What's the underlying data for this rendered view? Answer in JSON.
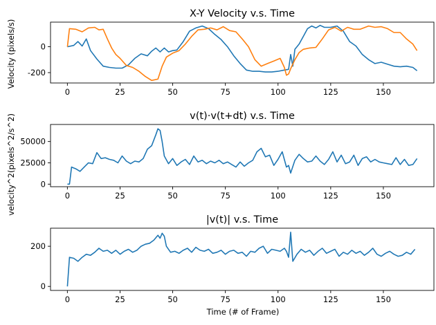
{
  "figure": {
    "xlabel": "Time (# of Frame)"
  },
  "chart_data": [
    {
      "type": "line",
      "title": "X-Y Velocity v.s. Time",
      "ylabel": "Velocity (pixels/s)",
      "xlim": [
        -8,
        174
      ],
      "ylim": [
        -280,
        190
      ],
      "xticks": [
        0,
        25,
        50,
        75,
        100,
        125,
        150
      ],
      "yticks": [
        -200,
        0
      ],
      "colors": [
        "#1f77b4",
        "#ff7f0e"
      ],
      "series": [
        {
          "x": [
            0,
            3,
            5,
            7,
            9,
            11,
            14,
            17,
            20,
            23,
            26,
            29,
            32,
            35,
            38,
            40,
            42,
            44,
            46,
            48,
            50,
            52,
            55,
            58,
            61,
            64,
            67,
            70,
            73,
            76,
            79,
            82,
            85,
            88,
            91,
            94,
            97,
            100,
            103,
            105,
            106,
            107,
            108,
            110,
            112,
            114,
            116,
            118,
            120,
            122,
            125,
            128,
            131,
            134,
            137,
            140,
            143,
            146,
            149,
            152,
            155,
            158,
            161,
            164,
            166
          ],
          "y": [
            0,
            10,
            40,
            5,
            60,
            -30,
            -95,
            -150,
            -160,
            -165,
            -165,
            -140,
            -90,
            -55,
            -70,
            -35,
            -10,
            -40,
            -10,
            -40,
            -30,
            -25,
            40,
            120,
            145,
            160,
            140,
            95,
            55,
            0,
            -70,
            -130,
            -180,
            -190,
            -190,
            -195,
            -195,
            -190,
            -180,
            -175,
            -60,
            -150,
            -20,
            20,
            80,
            140,
            160,
            145,
            165,
            150,
            150,
            160,
            120,
            40,
            5,
            -60,
            -100,
            -130,
            -120,
            -135,
            -150,
            -155,
            -150,
            -160,
            -185
          ]
        },
        {
          "x": [
            0,
            1,
            4,
            7,
            10,
            13,
            15,
            17,
            19,
            21,
            23,
            25,
            28,
            31,
            34,
            37,
            40,
            43,
            45,
            47,
            50,
            53,
            56,
            59,
            62,
            65,
            68,
            71,
            74,
            77,
            80,
            83,
            86,
            89,
            92,
            95,
            98,
            101,
            103,
            104,
            105,
            106,
            108,
            110,
            112,
            115,
            118,
            121,
            124,
            127,
            130,
            133,
            136,
            139,
            143,
            146,
            149,
            152,
            155,
            158,
            161,
            164,
            166
          ],
          "y": [
            0,
            140,
            135,
            115,
            145,
            150,
            130,
            135,
            60,
            -10,
            -60,
            -90,
            -145,
            -160,
            -190,
            -230,
            -260,
            -250,
            -150,
            -80,
            -50,
            -30,
            20,
            80,
            130,
            135,
            145,
            130,
            155,
            125,
            115,
            60,
            0,
            -100,
            -150,
            -130,
            -110,
            -90,
            -160,
            -220,
            -210,
            -170,
            -100,
            -45,
            -20,
            -10,
            -5,
            60,
            130,
            150,
            120,
            150,
            135,
            135,
            160,
            150,
            155,
            140,
            110,
            110,
            60,
            20,
            -30
          ]
        }
      ]
    },
    {
      "type": "line",
      "title": "v(t)·v(t+dt) v.s. Time",
      "ylabel": "velocity^2(pixels^2/s^2)",
      "xlim": [
        -8,
        174
      ],
      "ylim": [
        -3000,
        70000
      ],
      "xticks": [
        0,
        25,
        50,
        75,
        100,
        125,
        150
      ],
      "yticks": [
        0,
        25000,
        50000
      ],
      "colors": [
        "#1f77b4"
      ],
      "series": [
        {
          "x": [
            0,
            1,
            2,
            4,
            6,
            8,
            10,
            12,
            14,
            16,
            18,
            20,
            22,
            24,
            26,
            28,
            30,
            32,
            34,
            36,
            38,
            40,
            42,
            43,
            44,
            45,
            46,
            48,
            50,
            52,
            54,
            56,
            58,
            60,
            62,
            64,
            66,
            68,
            70,
            72,
            74,
            76,
            78,
            80,
            82,
            84,
            86,
            88,
            90,
            92,
            94,
            96,
            98,
            100,
            102,
            104,
            105,
            106,
            108,
            110,
            112,
            114,
            116,
            118,
            120,
            122,
            124,
            126,
            128,
            130,
            132,
            134,
            136,
            138,
            140,
            142,
            144,
            146,
            148,
            150,
            152,
            154,
            156,
            158,
            160,
            162,
            164,
            166
          ],
          "y": [
            0,
            0,
            20000,
            18000,
            15000,
            20000,
            25000,
            24000,
            37000,
            30000,
            31000,
            29000,
            28000,
            25000,
            33000,
            27000,
            24000,
            27000,
            26000,
            30000,
            41000,
            45000,
            58000,
            65000,
            63000,
            50000,
            33000,
            24000,
            30000,
            22000,
            26000,
            29000,
            23000,
            33000,
            26000,
            28000,
            24000,
            27000,
            25000,
            28000,
            24000,
            26000,
            23000,
            20000,
            26000,
            21000,
            25000,
            28000,
            38000,
            42000,
            32000,
            34000,
            22000,
            29000,
            38000,
            20000,
            22000,
            13000,
            28000,
            35000,
            30000,
            26000,
            27000,
            33000,
            27000,
            23000,
            29000,
            38000,
            26000,
            34000,
            24000,
            26000,
            34000,
            22000,
            30000,
            32000,
            26000,
            29000,
            26000,
            25000,
            24000,
            23000,
            31000,
            23000,
            29000,
            22000,
            23000,
            30000
          ]
        }
      ]
    },
    {
      "type": "line",
      "title": "|v(t)| v.s. Time",
      "ylabel": "",
      "xlim": [
        -8,
        174
      ],
      "ylim": [
        -20,
        290
      ],
      "xticks": [
        0,
        25,
        50,
        75,
        100,
        125,
        150
      ],
      "yticks": [
        0,
        200
      ],
      "colors": [
        "#1f77b4"
      ],
      "series": [
        {
          "x": [
            0,
            1,
            3,
            5,
            7,
            9,
            11,
            13,
            15,
            17,
            19,
            21,
            23,
            25,
            27,
            29,
            31,
            33,
            35,
            37,
            39,
            41,
            43,
            44,
            45,
            46,
            47,
            49,
            51,
            53,
            55,
            57,
            59,
            61,
            63,
            65,
            67,
            69,
            71,
            73,
            75,
            77,
            79,
            81,
            83,
            85,
            87,
            89,
            91,
            93,
            95,
            97,
            99,
            101,
            103,
            104,
            105,
            106,
            107,
            109,
            111,
            113,
            115,
            117,
            119,
            121,
            123,
            125,
            127,
            129,
            131,
            133,
            135,
            137,
            139,
            141,
            143,
            145,
            147,
            149,
            151,
            153,
            155,
            157,
            159,
            161,
            163,
            165
          ],
          "y": [
            0,
            145,
            140,
            125,
            145,
            160,
            155,
            170,
            190,
            175,
            180,
            165,
            180,
            160,
            175,
            185,
            170,
            180,
            200,
            210,
            215,
            230,
            255,
            240,
            265,
            250,
            200,
            170,
            175,
            165,
            180,
            190,
            170,
            195,
            180,
            175,
            185,
            165,
            170,
            180,
            160,
            175,
            180,
            165,
            170,
            150,
            175,
            170,
            190,
            200,
            165,
            185,
            180,
            175,
            190,
            175,
            145,
            270,
            125,
            160,
            185,
            170,
            180,
            155,
            175,
            190,
            165,
            175,
            185,
            150,
            170,
            160,
            180,
            165,
            175,
            155,
            170,
            190,
            160,
            150,
            165,
            175,
            160,
            150,
            155,
            170,
            160,
            185
          ]
        }
      ]
    }
  ]
}
